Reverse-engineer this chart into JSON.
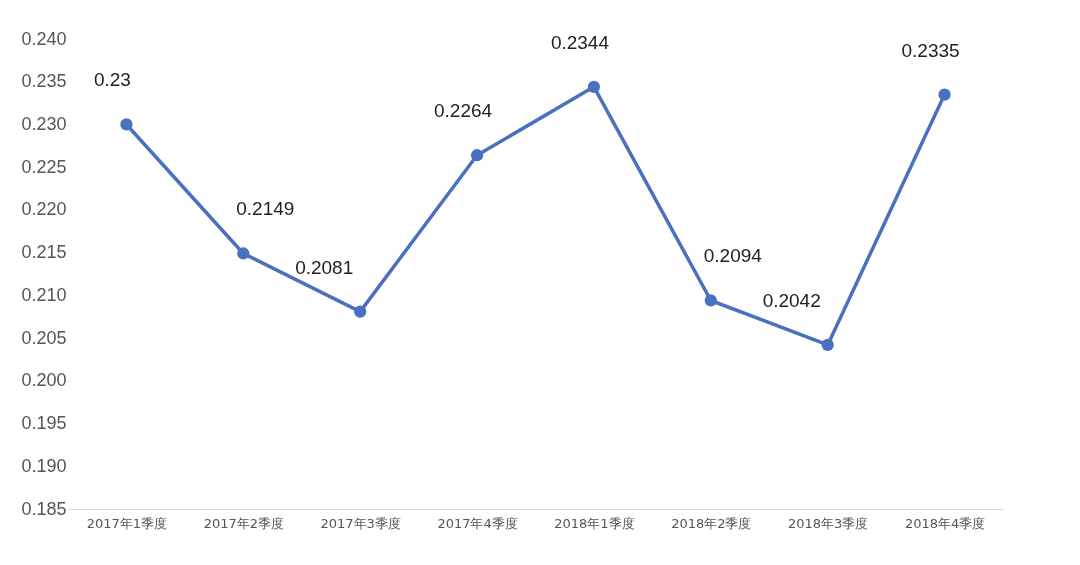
{
  "chart_data": {
    "type": "line",
    "categories": [
      "2017年1季度",
      "2017年2季度",
      "2017年3季度",
      "2017年4季度",
      "2018年1季度",
      "2018年2季度",
      "2018年3季度",
      "2018年4季度"
    ],
    "series": [
      {
        "color": "#4a70c0",
        "values": [
          0.23,
          0.2149,
          0.2081,
          0.2264,
          0.2344,
          0.2094,
          0.2042,
          0.2335
        ]
      }
    ],
    "ylim": [
      0.185,
      0.24
    ],
    "yticks": [
      0.185,
      {
        "value": 0.19,
        "label": "0.190"
      },
      0.195,
      {
        "value": 0.2,
        "label": "0.200"
      },
      0.205,
      {
        "value": 0.21,
        "label": "0.210"
      },
      0.215,
      {
        "value": 0.22,
        "label": "0.220"
      },
      0.225,
      {
        "value": 0.23,
        "label": "0.230"
      },
      0.235,
      {
        "value": 0.24,
        "label": "0.240"
      }
    ],
    "grid": false,
    "marker": "circle",
    "line_style": "solid",
    "data_labels": true,
    "legend": false
  }
}
